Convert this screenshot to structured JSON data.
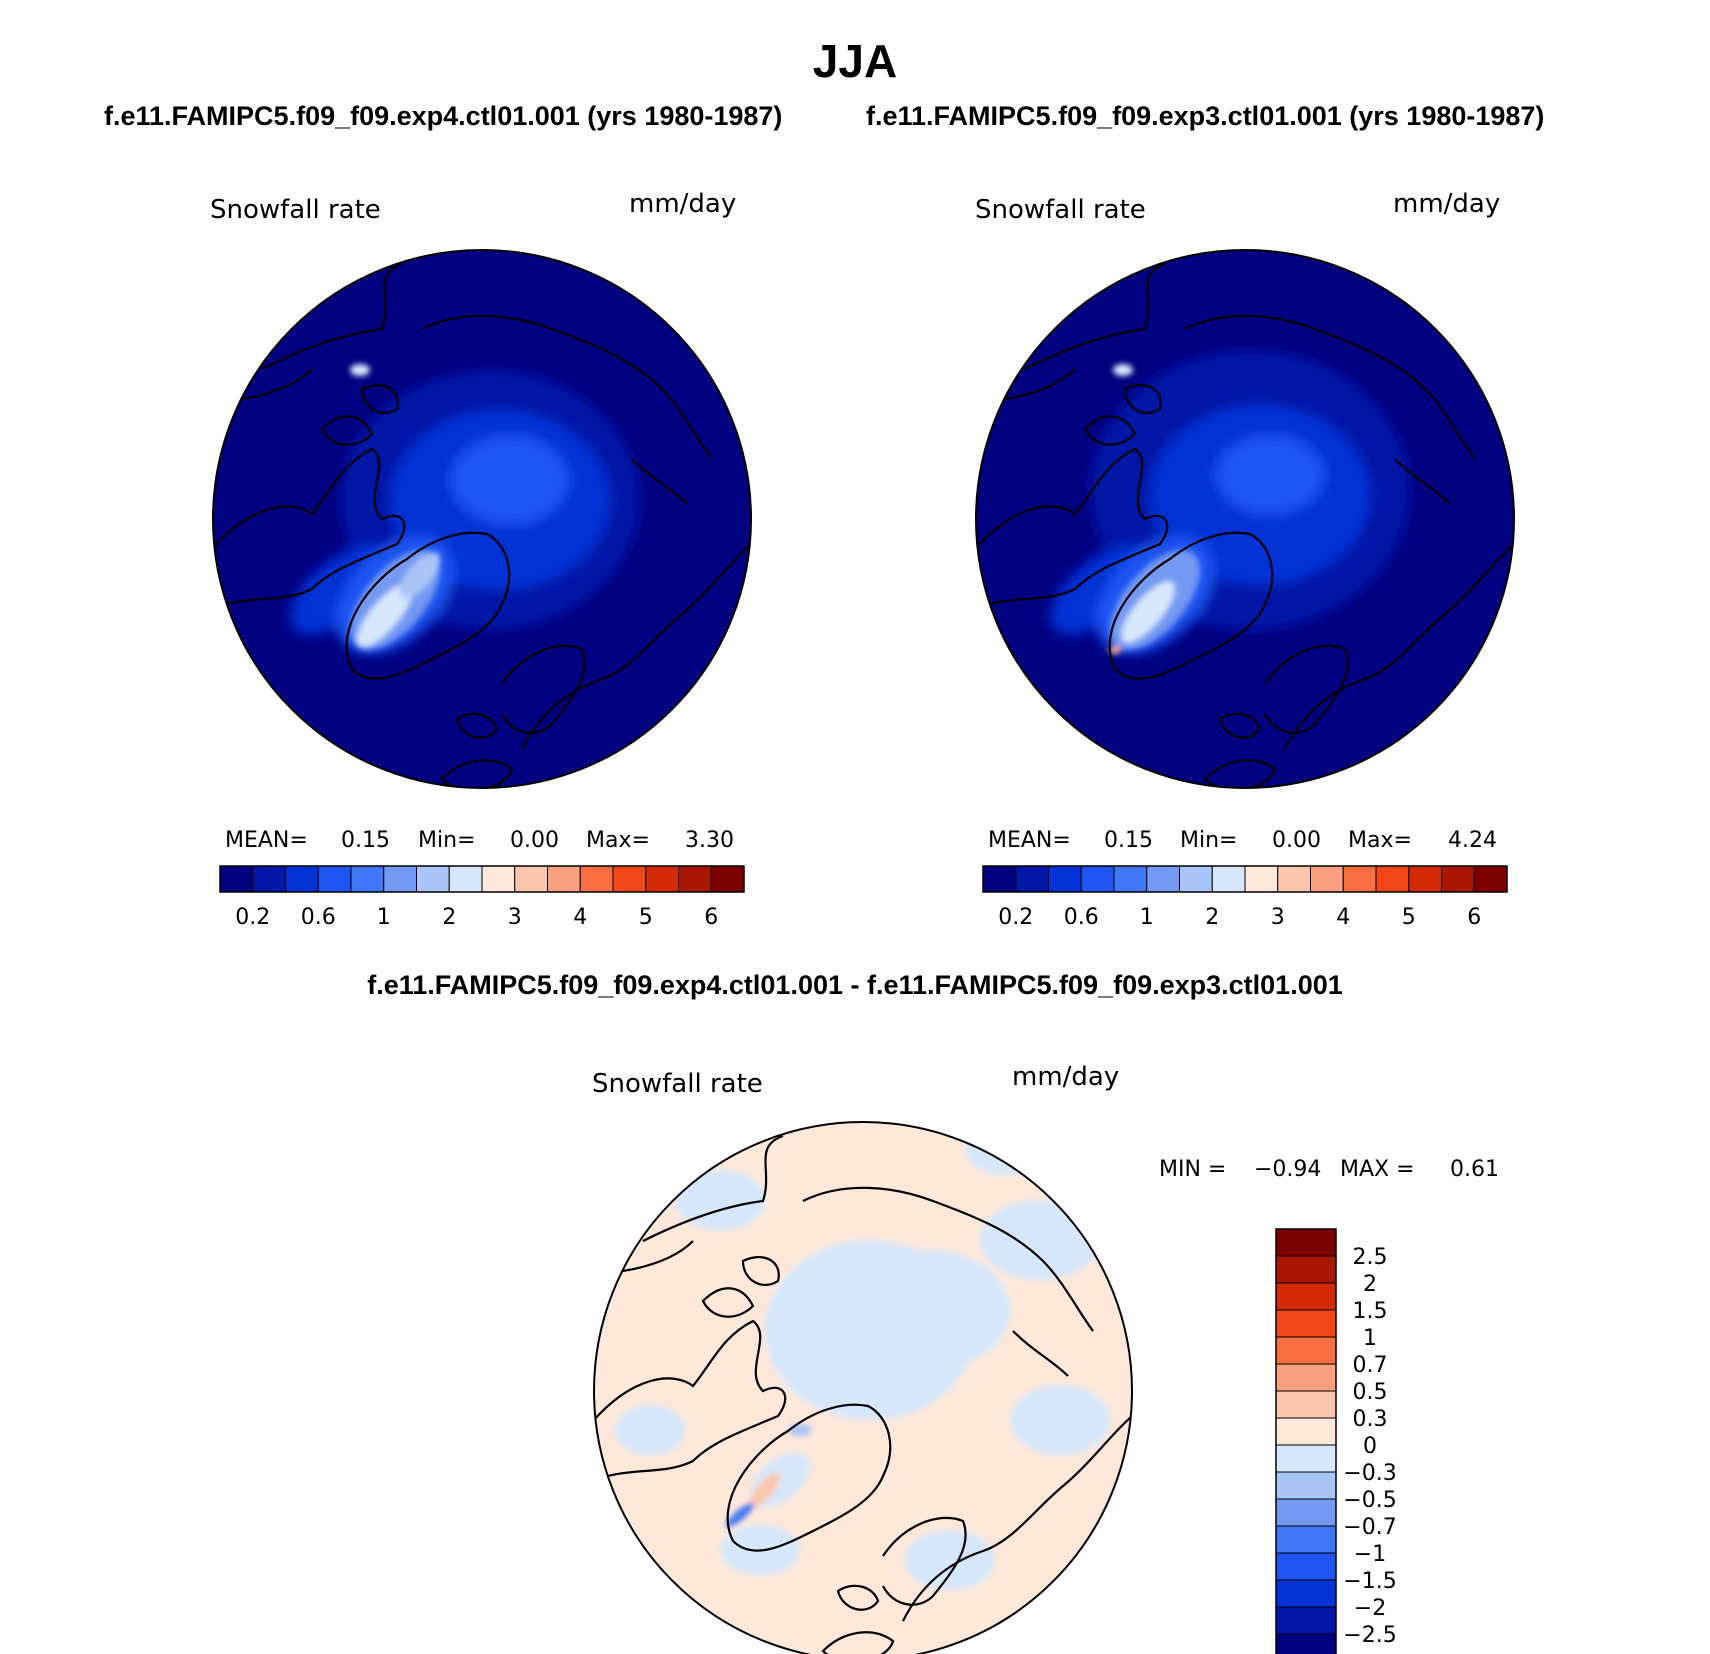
{
  "title": "JJA",
  "panels": [
    {
      "case_title": "f.e11.FAMIPC5.f09_f09.exp4.ctl01.001 (yrs 1980-1987)",
      "variable": "Snowfall rate",
      "units": "mm/day",
      "stats": {
        "mean_label": "MEAN=",
        "mean": "0.15",
        "min_label": "Min=",
        "min": "0.00",
        "max_label": "Max=",
        "max": "3.30"
      }
    },
    {
      "case_title": "f.e11.FAMIPC5.f09_f09.exp3.ctl01.001 (yrs 1980-1987)",
      "variable": "Snowfall rate",
      "units": "mm/day",
      "stats": {
        "mean_label": "MEAN=",
        "mean": "0.15",
        "min_label": "Min=",
        "min": "0.00",
        "max_label": "Max=",
        "max": "4.24"
      }
    }
  ],
  "diff_panel": {
    "title": "f.e11.FAMIPC5.f09_f09.exp4.ctl01.001 - f.e11.FAMIPC5.f09_f09.exp3.ctl01.001",
    "variable": "Snowfall rate",
    "units": "mm/day",
    "stats": {
      "min_label": "MIN =",
      "min": "−0.94",
      "max_label": "MAX =",
      "max": "0.61"
    }
  },
  "abs_colorbar": {
    "colors": [
      "#000080",
      "#0016a6",
      "#0532d6",
      "#1f55f2",
      "#3f77f5",
      "#7399f2",
      "#a9c4f7",
      "#d6e7fb",
      "#fde8da",
      "#fcc6ad",
      "#f9a17e",
      "#f76e43",
      "#f04618",
      "#d22a06",
      "#a91704",
      "#7d0000"
    ],
    "labels": [
      "0.2",
      "0.6",
      "1",
      "2",
      "3",
      "4",
      "5",
      "6"
    ]
  },
  "diff_colorbar": {
    "colors": [
      "#000080",
      "#0016a6",
      "#0532d6",
      "#1f55f2",
      "#3f77f5",
      "#7399f2",
      "#a9c4f7",
      "#d6e7fb",
      "#fde8da",
      "#fcc6ad",
      "#f9a17e",
      "#f76e43",
      "#f04618",
      "#d22a06",
      "#a91704",
      "#7d0000"
    ],
    "labels": [
      "−2.5",
      "−2",
      "−1.5",
      "−1",
      "−0.7",
      "−0.5",
      "−0.3",
      "0",
      "0.3",
      "0.5",
      "0.7",
      "1",
      "1.5",
      "2",
      "2.5"
    ]
  },
  "colors": {
    "ocean_low": "#000080",
    "arctic_mid": "#0532d6",
    "ice_light": "#d6e7fb",
    "diff_pos": "#fde8da",
    "diff_neg": "#d6e7fb"
  }
}
